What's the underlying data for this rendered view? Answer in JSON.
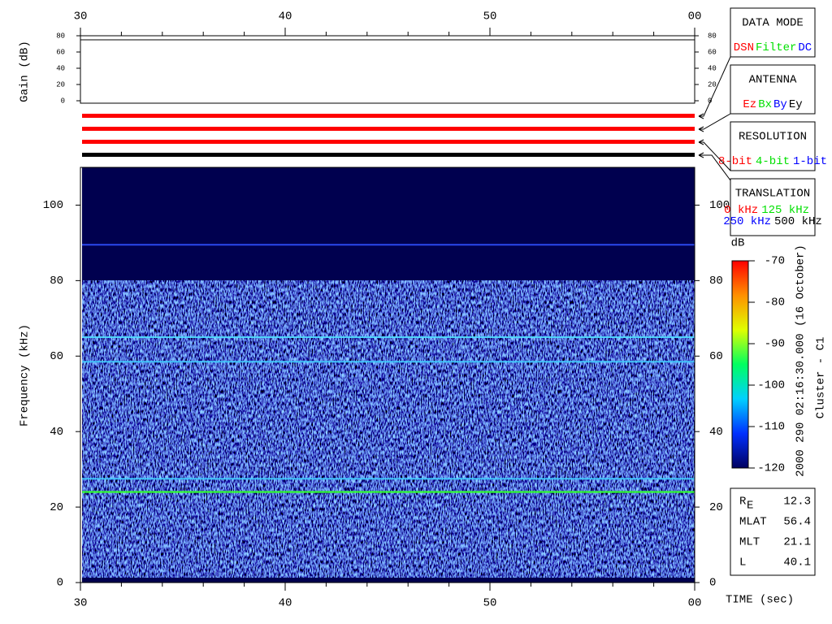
{
  "chart_data": {
    "type": "spectrogram",
    "xlim": [
      30,
      60
    ],
    "xticks": [
      30,
      40,
      50,
      {
        "value": 60,
        "label": "00"
      }
    ],
    "xminorticks": [
      32,
      34,
      36,
      38,
      42,
      44,
      46,
      48,
      52,
      54,
      56,
      58
    ],
    "xlabel": "TIME (sec)",
    "gain_panel": {
      "ylabel": "Gain (dB)",
      "ylim": [
        0,
        80
      ],
      "yticks": [
        0,
        20,
        40,
        60,
        80
      ]
    },
    "mode_bar_colors": [
      "#ff0000",
      "#ff0000",
      "#ff0000",
      "#000000"
    ],
    "ylabel": "Frequency (kHz)",
    "ylim": [
      0,
      110
    ],
    "yticks": [
      0,
      20,
      40,
      60,
      80,
      100
    ],
    "noise_band": [
      0,
      80
    ],
    "lines": {
      "frequencies": [
        24,
        27.5,
        58.5,
        65,
        89.5
      ],
      "colors": [
        "#30ff30",
        "#40d0ff",
        "#40d0ff",
        "#50e0ff",
        "#3050ff"
      ]
    },
    "colorbar": {
      "label": "dB",
      "clim": [
        -120,
        -70
      ],
      "ticks": [
        -70,
        -80,
        -90,
        -100,
        -110,
        -120
      ],
      "colors": [
        "#000060",
        "#0030ff",
        "#00d0ff",
        "#00ff60",
        "#e0ff00",
        "#ff9000",
        "#ff0000"
      ]
    },
    "timestamp": "2000 290 02:16:30.000 (16 October)",
    "spacecraft": "Cluster - C1",
    "mode_boxes": [
      {
        "title": "DATA MODE",
        "items": [
          {
            "label": "DSN",
            "color": "#ff0000"
          },
          {
            "label": "Filter",
            "color": "#00e000"
          },
          {
            "label": "DC",
            "color": "#0000ff"
          }
        ]
      },
      {
        "title": "ANTENNA",
        "items": [
          {
            "label": "Ez",
            "color": "#ff0000"
          },
          {
            "label": "Bx",
            "color": "#00e000"
          },
          {
            "label": "By",
            "color": "#0000ff"
          },
          {
            "label": "Ey",
            "color": "#000000"
          }
        ]
      },
      {
        "title": "RESOLUTION",
        "items": [
          {
            "label": "8-bit",
            "color": "#ff0000"
          },
          {
            "label": "4-bit",
            "color": "#00e000"
          },
          {
            "label": "1-bit",
            "color": "#0000ff"
          }
        ]
      },
      {
        "title": "TRANSLATION",
        "items": [
          {
            "label": "0 kHz",
            "color": "#ff0000"
          },
          {
            "label": "125 kHz",
            "color": "#00e000"
          },
          {
            "label": "250 kHz",
            "color": "#0000ff"
          },
          {
            "label": "500 kHz",
            "color": "#000000"
          }
        ]
      }
    ],
    "ephemeris": [
      {
        "label": "R",
        "sub": "E",
        "value": 12.3
      },
      {
        "label": "MLAT",
        "value": 56.4
      },
      {
        "label": "MLT",
        "value": 21.1
      },
      {
        "label": "L",
        "value": 40.1
      }
    ]
  }
}
